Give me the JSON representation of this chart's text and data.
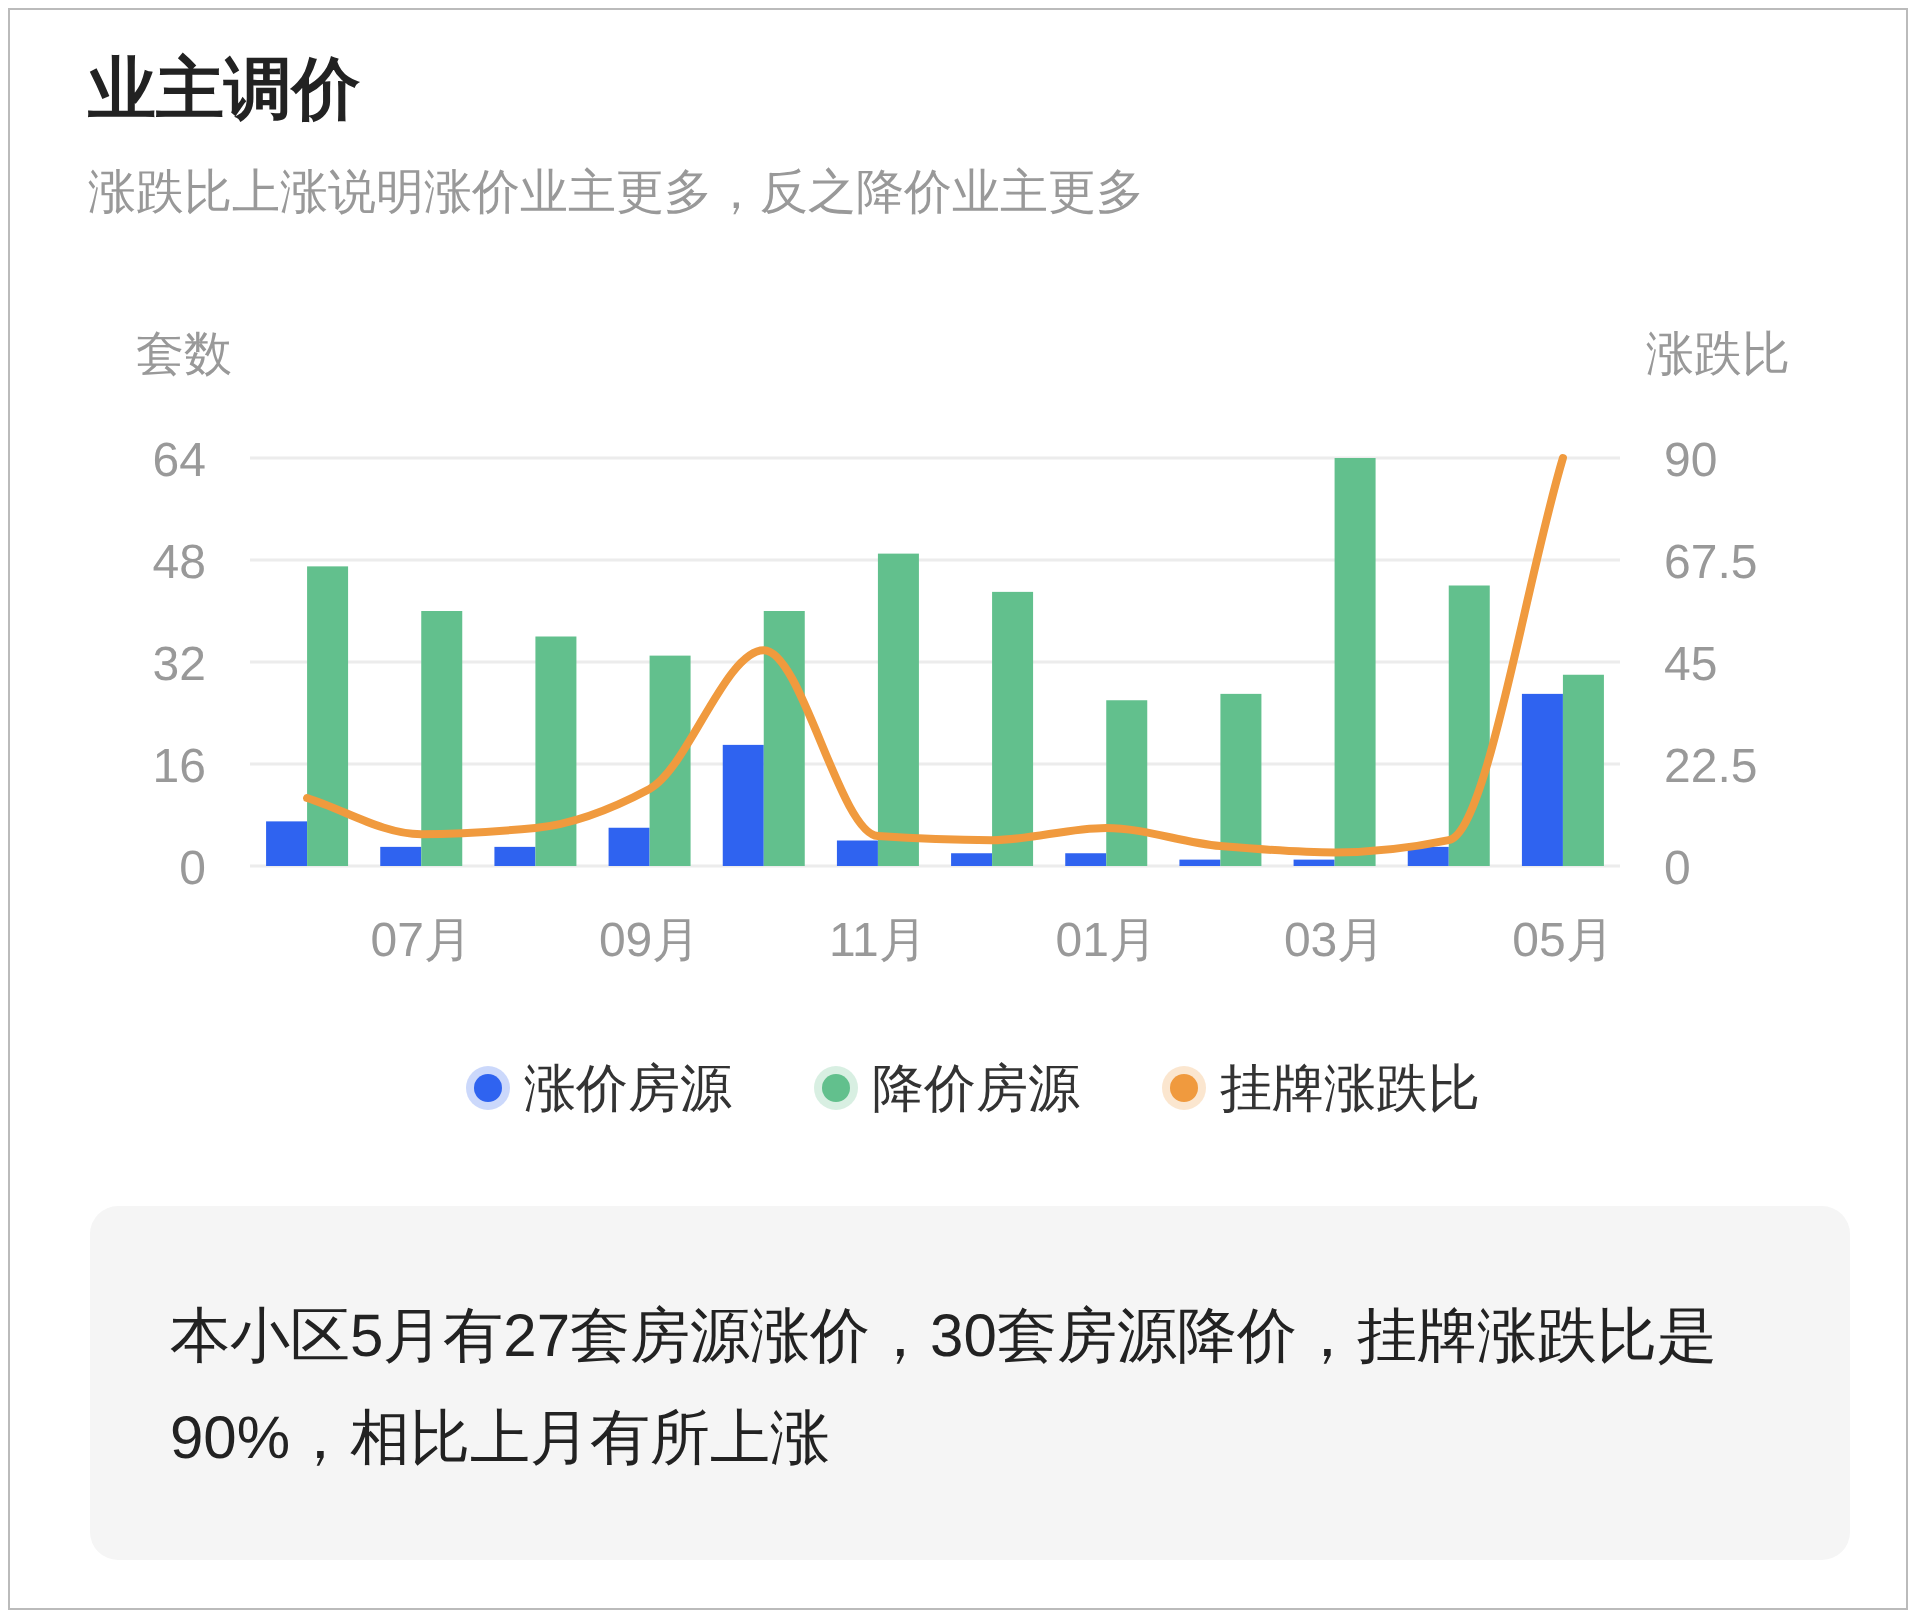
{
  "chart_data": {
    "type": "bar",
    "title": "业主调价",
    "subtitle": "涨跌比上涨说明涨价业主更多，反之降价业主更多",
    "ylabel": "套数",
    "y2label": "涨跌比",
    "categories": [
      null,
      "07月",
      null,
      "09月",
      null,
      "11月",
      null,
      "01月",
      null,
      "03月",
      null,
      "05月"
    ],
    "series": [
      {
        "name": "涨价房源",
        "color": "#2f63f0",
        "values": [
          7,
          3,
          3,
          6,
          19,
          4,
          2,
          2,
          1,
          1,
          3,
          27
        ]
      },
      {
        "name": "降价房源",
        "color": "#62c08d",
        "values": [
          47,
          40,
          36,
          33,
          40,
          49,
          43,
          26,
          27,
          64,
          44,
          30
        ]
      },
      {
        "name": "挂牌涨跌比",
        "type": "line",
        "axis": "y2",
        "color": "#f09a3e",
        "values": [
          15,
          7,
          8.4,
          17,
          47.6,
          6.6,
          5.7,
          8.4,
          4.4,
          3,
          5.7,
          90
        ]
      }
    ],
    "ylim": [
      0,
      64
    ],
    "yticks": [
      0,
      16,
      32,
      48,
      64
    ],
    "y2lim": [
      0,
      90
    ],
    "y2ticks": [
      0,
      22.5,
      45,
      67.5,
      90
    ],
    "grid": "y",
    "legend": "bottom",
    "annotations": [
      "本小区5月有27套房源涨价，30套房源降价，挂牌涨跌比是90%，相比上月有所上涨"
    ]
  }
}
